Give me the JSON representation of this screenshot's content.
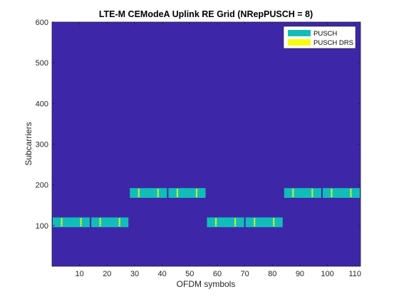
{
  "chart_data": {
    "type": "heatmap",
    "title": "LTE-M CEModeA Uplink RE Grid (NRepPUSCH = 8)",
    "xlabel": "OFDM symbols",
    "ylabel": "Subcarriers",
    "xlim": [
      0,
      112
    ],
    "ylim": [
      0,
      600
    ],
    "xticks": [
      10,
      20,
      30,
      40,
      50,
      60,
      70,
      80,
      90,
      100,
      110
    ],
    "yticks": [
      100,
      200,
      300,
      400,
      500,
      600
    ],
    "background_color": "#3e26a8",
    "grid": false,
    "legend_position": "top-right",
    "legend": [
      {
        "label": "PUSCH",
        "color": "#12bdb9"
      },
      {
        "label": "PUSCH DRS",
        "color": "#f9fb0e"
      }
    ],
    "pusch_blocks": [
      {
        "symbols": [
          0,
          14
        ],
        "subcarriers": [
          96,
          120
        ]
      },
      {
        "symbols": [
          14,
          28
        ],
        "subcarriers": [
          96,
          120
        ]
      },
      {
        "symbols": [
          28,
          42
        ],
        "subcarriers": [
          168,
          192
        ]
      },
      {
        "symbols": [
          42,
          56
        ],
        "subcarriers": [
          168,
          192
        ]
      },
      {
        "symbols": [
          56,
          70
        ],
        "subcarriers": [
          96,
          120
        ]
      },
      {
        "symbols": [
          70,
          84
        ],
        "subcarriers": [
          96,
          120
        ]
      },
      {
        "symbols": [
          84,
          98
        ],
        "subcarriers": [
          168,
          192
        ]
      },
      {
        "symbols": [
          98,
          112
        ],
        "subcarriers": [
          168,
          192
        ]
      }
    ],
    "drs_symbols": [
      3,
      10,
      17,
      24,
      31,
      38,
      45,
      52,
      59,
      66,
      73,
      80,
      87,
      94,
      101,
      108
    ]
  }
}
